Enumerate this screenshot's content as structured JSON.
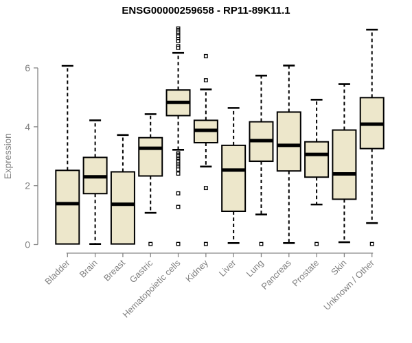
{
  "chart_data": {
    "type": "boxplot",
    "title": "ENSG00000259658 - RP11-89K11.1",
    "ylabel": "Expression",
    "xlabel": "",
    "yticks": [
      0,
      2,
      4,
      6
    ],
    "ylim": [
      0,
      7.45
    ],
    "grid": false,
    "legend": "none",
    "colors": {
      "box_fill": "#EDE7CB",
      "box_stroke": "#000000",
      "median": "#000000",
      "axis": "#868686",
      "axis_text": "#808080",
      "title": "#000000",
      "background": "#ffffff"
    },
    "categories": [
      "Bladder",
      "Brain",
      "Breast",
      "Gastric",
      "Hematopoietic cells",
      "Kidney",
      "Liver",
      "Lung",
      "Pancreas",
      "Prostate",
      "Skin",
      "Unknown / Other"
    ],
    "series": [
      {
        "category": "Bladder",
        "whisker_low": 0.02,
        "q1": 0.02,
        "median": 1.39,
        "q3": 2.52,
        "whisker_high": 6.07,
        "outliers": []
      },
      {
        "category": "Brain",
        "whisker_low": 0.02,
        "q1": 1.73,
        "median": 2.3,
        "q3": 2.96,
        "whisker_high": 4.22,
        "outliers": []
      },
      {
        "category": "Breast",
        "whisker_low": 0.02,
        "q1": 0.02,
        "median": 1.37,
        "q3": 2.47,
        "whisker_high": 3.72,
        "outliers": []
      },
      {
        "category": "Gastric",
        "whisker_low": 1.08,
        "q1": 2.33,
        "median": 3.27,
        "q3": 3.63,
        "whisker_high": 4.43,
        "outliers": [
          0.02
        ]
      },
      {
        "category": "Hematopoietic cells",
        "whisker_low": 3.22,
        "q1": 4.38,
        "median": 4.83,
        "q3": 5.25,
        "whisker_high": 6.51,
        "outliers": [
          7.34,
          7.28,
          7.23,
          7.17,
          7.12,
          7.07,
          6.98,
          6.91,
          6.74,
          6.68,
          3.1,
          3.05,
          3.0,
          2.95,
          2.9,
          2.84,
          2.79,
          2.73,
          2.68,
          2.62,
          2.55,
          2.41,
          1.74,
          1.28,
          0.02
        ]
      },
      {
        "category": "Kidney",
        "whisker_low": 2.65,
        "q1": 3.46,
        "median": 3.88,
        "q3": 4.22,
        "whisker_high": 5.27,
        "outliers": [
          6.4,
          5.58,
          1.92,
          0.02
        ]
      },
      {
        "category": "Liver",
        "whisker_low": 0.05,
        "q1": 1.13,
        "median": 2.53,
        "q3": 3.37,
        "whisker_high": 4.64,
        "outliers": []
      },
      {
        "category": "Lung",
        "whisker_low": 1.02,
        "q1": 2.83,
        "median": 3.53,
        "q3": 4.17,
        "whisker_high": 5.74,
        "outliers": [
          0.02
        ]
      },
      {
        "category": "Pancreas",
        "whisker_low": 0.05,
        "q1": 2.5,
        "median": 3.37,
        "q3": 4.5,
        "whisker_high": 6.08,
        "outliers": []
      },
      {
        "category": "Prostate",
        "whisker_low": 1.36,
        "q1": 2.29,
        "median": 3.06,
        "q3": 3.49,
        "whisker_high": 4.92,
        "outliers": [
          0.02
        ]
      },
      {
        "category": "Skin",
        "whisker_low": 0.08,
        "q1": 1.54,
        "median": 2.4,
        "q3": 3.89,
        "whisker_high": 5.45,
        "outliers": []
      },
      {
        "category": "Unknown / Other",
        "whisker_low": 0.73,
        "q1": 3.26,
        "median": 4.09,
        "q3": 4.99,
        "whisker_high": 7.3,
        "outliers": [
          0.02
        ]
      }
    ]
  }
}
